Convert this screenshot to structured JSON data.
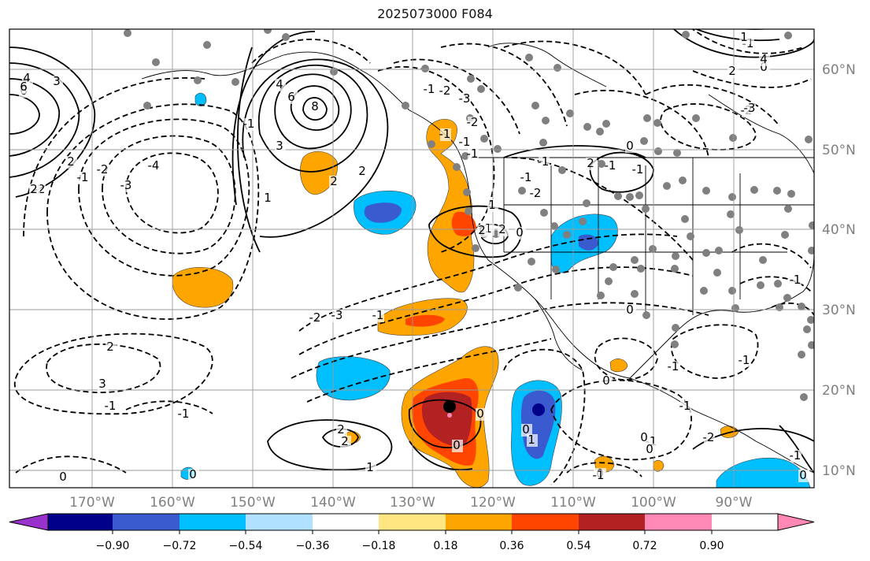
{
  "title": "2025073000 F084",
  "map": {
    "projection": "mercator",
    "lon_range": [
      -180,
      -80
    ],
    "lat_range": [
      8,
      65
    ],
    "grid_on": true,
    "lon_labels": [
      "170°W",
      "160°W",
      "150°W",
      "140°W",
      "130°W",
      "120°W",
      "110°W",
      "100°W",
      "90°W"
    ],
    "lat_labels": [
      "60°N",
      "50°N",
      "40°N",
      "30°N",
      "20°N",
      "10°N"
    ],
    "contour_labels": [
      "6",
      "3",
      "4",
      "-2",
      "2",
      "-1",
      "-2",
      "-3",
      "-4",
      "6",
      "8",
      "4",
      "3",
      "-1",
      "2",
      "2",
      "1",
      "-2",
      "-3",
      "-2",
      "-1",
      "-1",
      "1",
      "2",
      "0",
      "1",
      "-1",
      "-2",
      "-1",
      "2",
      "-1",
      "-1",
      "0",
      "2",
      "-1",
      "-1",
      "-2",
      "-1",
      "0",
      "1",
      "4",
      "2",
      "-3",
      "6",
      "2",
      "2",
      "3",
      "-2",
      "-3",
      "-1",
      "-1",
      "0",
      "0",
      "-1",
      "-1",
      "0",
      "0",
      "0",
      "1",
      "-1",
      "-2",
      "-1",
      "0",
      "2",
      "2",
      "1",
      "0",
      "0",
      "-1",
      "-1",
      "0",
      "-1",
      "0",
      "0",
      "-1"
    ]
  },
  "colorbar": {
    "ticks": [
      "−0.90",
      "−0.72",
      "−0.54",
      "−0.36",
      "−0.18",
      "0.18",
      "0.36",
      "0.54",
      "0.72",
      "0.90"
    ],
    "colors": [
      "#9932cc",
      "#00008b",
      "#3a5bd0",
      "#00bfff",
      "#b0e2ff",
      "#ffffff",
      "#ffe680",
      "#ffa500",
      "#ff4500",
      "#b22222",
      "#ff89b4"
    ]
  },
  "colors": {
    "grid": "#9a9a9a",
    "axis_label": "#808080",
    "coast": "#000000",
    "station": "#808080"
  }
}
